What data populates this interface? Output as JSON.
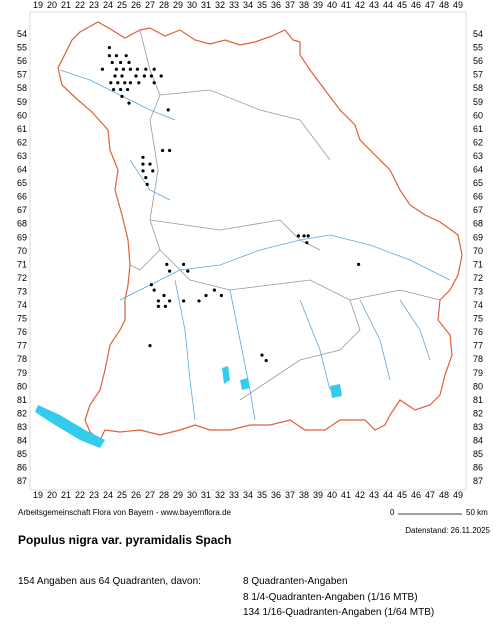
{
  "map": {
    "x_labels": [
      19,
      20,
      21,
      22,
      23,
      24,
      25,
      26,
      27,
      28,
      29,
      30,
      31,
      32,
      33,
      34,
      35,
      36,
      37,
      38,
      39,
      40,
      41,
      42,
      43,
      44,
      45,
      46,
      47,
      48,
      49
    ],
    "y_labels": [
      54,
      55,
      56,
      57,
      58,
      59,
      60,
      61,
      62,
      63,
      64,
      65,
      66,
      67,
      68,
      69,
      70,
      71,
      72,
      73,
      74,
      75,
      76,
      77,
      78,
      79,
      80,
      81,
      82,
      83,
      84,
      85,
      86,
      87
    ],
    "points": [
      [
        24.1,
        55.0
      ],
      [
        24.1,
        55.6
      ],
      [
        24.6,
        55.6
      ],
      [
        25.3,
        55.6
      ],
      [
        24.3,
        56.1
      ],
      [
        24.9,
        56.1
      ],
      [
        25.5,
        56.1
      ],
      [
        23.6,
        56.6
      ],
      [
        24.6,
        56.6
      ],
      [
        25.1,
        56.6
      ],
      [
        25.6,
        56.6
      ],
      [
        26.1,
        56.6
      ],
      [
        26.7,
        56.6
      ],
      [
        27.3,
        56.6
      ],
      [
        24.5,
        57.1
      ],
      [
        25.0,
        57.1
      ],
      [
        26.0,
        57.1
      ],
      [
        26.6,
        57.1
      ],
      [
        27.1,
        57.1
      ],
      [
        27.8,
        57.1
      ],
      [
        24.2,
        57.6
      ],
      [
        24.7,
        57.6
      ],
      [
        25.2,
        57.6
      ],
      [
        25.6,
        57.6
      ],
      [
        26.2,
        57.6
      ],
      [
        27.3,
        57.6
      ],
      [
        24.4,
        58.1
      ],
      [
        24.9,
        58.1
      ],
      [
        25.4,
        58.1
      ],
      [
        25.0,
        58.6
      ],
      [
        25.5,
        59.1
      ],
      [
        28.3,
        59.6
      ],
      [
        27.9,
        62.6
      ],
      [
        28.4,
        62.6
      ],
      [
        26.5,
        63.1
      ],
      [
        26.5,
        63.6
      ],
      [
        27.0,
        63.6
      ],
      [
        26.5,
        64.1
      ],
      [
        27.2,
        64.1
      ],
      [
        26.7,
        64.6
      ],
      [
        26.8,
        65.1
      ],
      [
        37.6,
        68.9
      ],
      [
        38.0,
        68.9
      ],
      [
        38.3,
        68.9
      ],
      [
        38.2,
        69.4
      ],
      [
        28.2,
        71.0
      ],
      [
        29.4,
        71.0
      ],
      [
        41.9,
        71.0
      ],
      [
        28.4,
        71.5
      ],
      [
        29.7,
        71.5
      ],
      [
        27.1,
        72.5
      ],
      [
        27.3,
        72.9
      ],
      [
        31.6,
        72.9
      ],
      [
        28.0,
        73.3
      ],
      [
        31.0,
        73.3
      ],
      [
        32.1,
        73.3
      ],
      [
        27.6,
        73.7
      ],
      [
        28.4,
        73.7
      ],
      [
        29.4,
        73.7
      ],
      [
        30.5,
        73.7
      ],
      [
        27.6,
        74.1
      ],
      [
        28.1,
        74.1
      ],
      [
        27.0,
        77.0
      ],
      [
        35.0,
        77.7
      ],
      [
        35.3,
        78.1
      ]
    ]
  },
  "footer": {
    "credit": "Arbeitsgemeinschaft Flora von Bayern - www.bayernflora.de",
    "scale_start": "0",
    "scale_end": "50 km",
    "date": "Datenstand: 26.11.2025",
    "species": "Populus nigra var. pyramidalis Spach",
    "summary": "154 Angaben aus 64 Quadranten, davon:",
    "details": [
      "8 Quadranten-Angaben",
      "8 1/4-Quadranten-Angaben (1/16 MTB)",
      "134 1/16-Quadranten-Angaben (1/64 MTB)"
    ]
  }
}
